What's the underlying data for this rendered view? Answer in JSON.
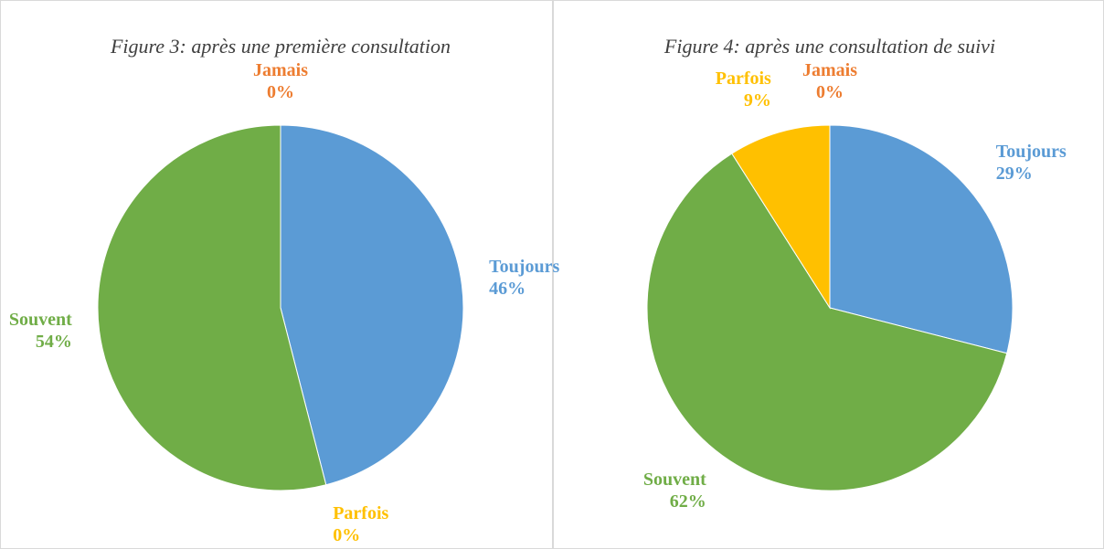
{
  "chart_data": [
    {
      "type": "pie",
      "title": "Figure 3: après une première consultation",
      "categories": [
        "Toujours",
        "Parfois",
        "Souvent",
        "Jamais"
      ],
      "values": [
        46,
        0,
        54,
        0
      ],
      "value_labels": [
        "46%",
        "0%",
        "54%",
        "0%"
      ],
      "colors": [
        "#5b9bd5",
        "#ffc000",
        "#70ad47",
        "#ed7d31"
      ]
    },
    {
      "type": "pie",
      "title": "Figure 4: après une consultation de suivi",
      "categories": [
        "Toujours",
        "Souvent",
        "Parfois",
        "Jamais"
      ],
      "values": [
        29,
        62,
        9,
        0
      ],
      "value_labels": [
        "29%",
        "62%",
        "9%",
        "0%"
      ],
      "colors": [
        "#5b9bd5",
        "#70ad47",
        "#ffc000",
        "#ed7d31"
      ]
    }
  ]
}
